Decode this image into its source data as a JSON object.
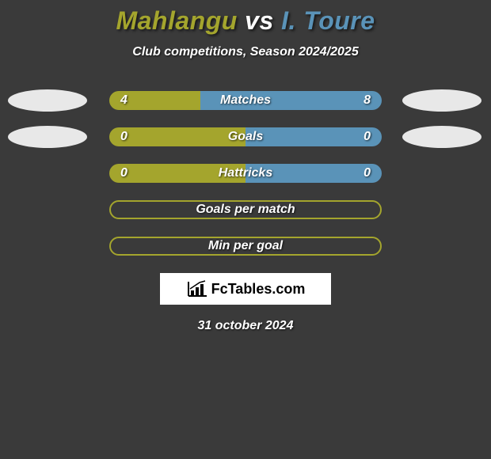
{
  "title": {
    "player1": "Mahlangu",
    "vs": "vs",
    "player2": "I. Toure",
    "p1_color": "#a4a52d",
    "vs_color": "#ffffff",
    "p2_color": "#5a93b8"
  },
  "subtitle": "Club competitions, Season 2024/2025",
  "background_color": "#3a3a3a",
  "colors": {
    "p1_bar": "#a4a52d",
    "p2_bar": "#5a93b8",
    "p1_badge": "#e8e8e8",
    "p2_badge": "#e8e8e8",
    "empty_border": "#a4a52d"
  },
  "rows": [
    {
      "type": "split",
      "label": "Matches",
      "v1": "4",
      "v2": "8",
      "p1_pct": 33.3,
      "p2_pct": 66.7,
      "show_badges": true
    },
    {
      "type": "split",
      "label": "Goals",
      "v1": "0",
      "v2": "0",
      "p1_pct": 50,
      "p2_pct": 50,
      "show_badges": true
    },
    {
      "type": "split",
      "label": "Hattricks",
      "v1": "0",
      "v2": "0",
      "p1_pct": 50,
      "p2_pct": 50,
      "show_badges": false
    },
    {
      "type": "empty",
      "label": "Goals per match"
    },
    {
      "type": "empty",
      "label": "Min per goal"
    }
  ],
  "logo_text": "FcTables.com",
  "date": "31 october 2024"
}
